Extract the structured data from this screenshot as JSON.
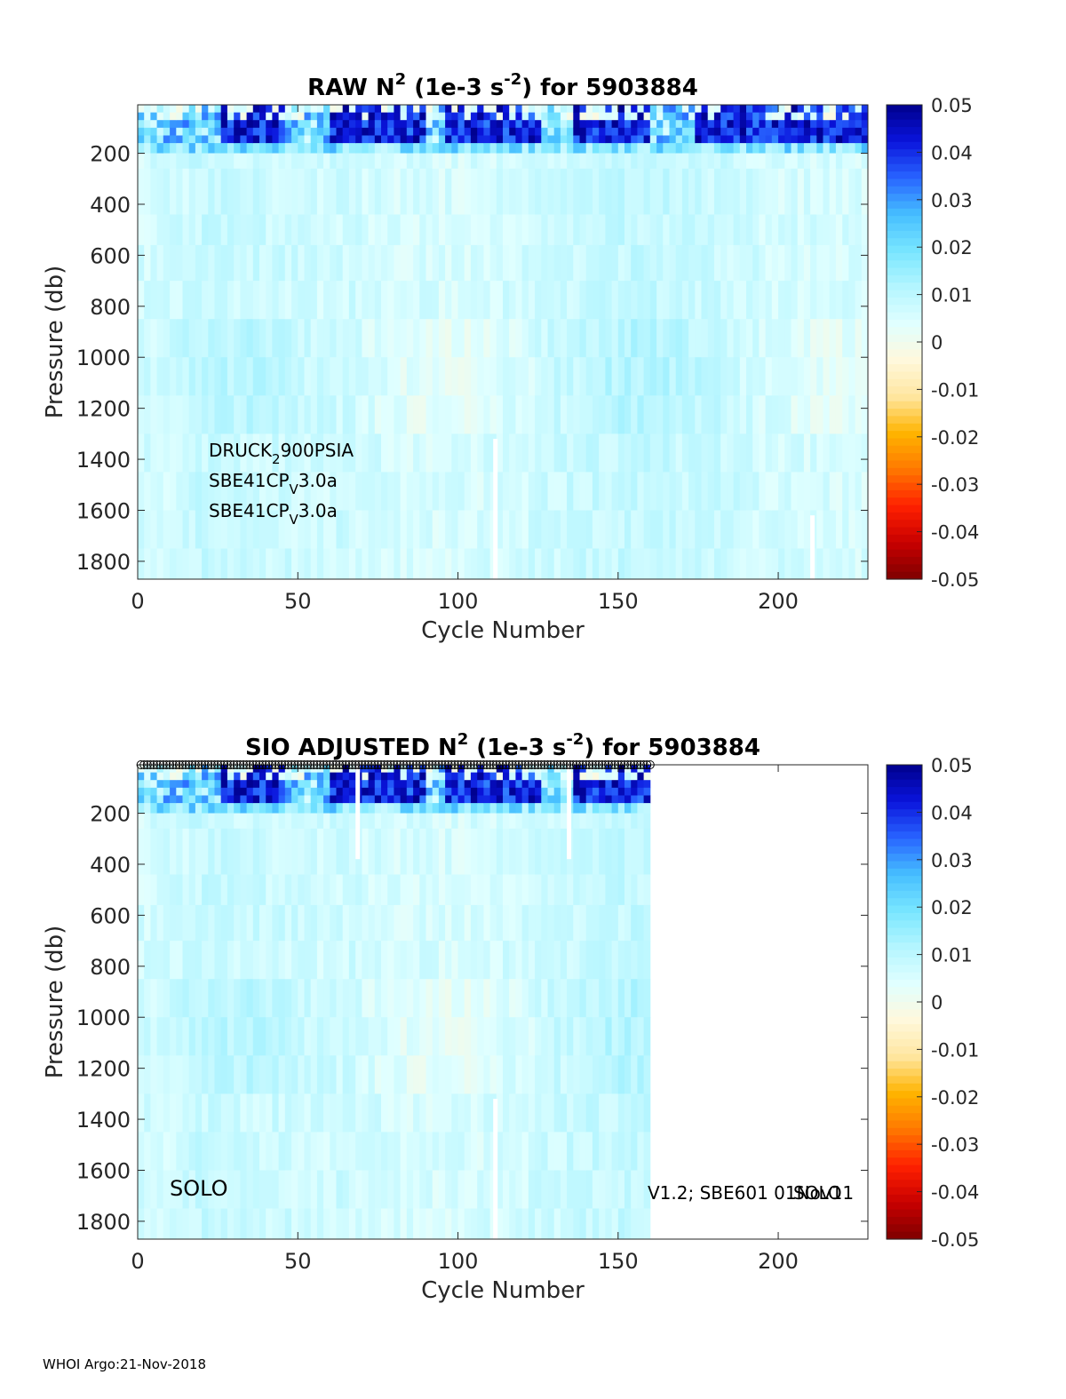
{
  "footer": "WHOI Argo:21-Nov-2018",
  "colors": {
    "colormap": [
      "#7f0000",
      "#c80000",
      "#ff2000",
      "#ff7800",
      "#ffb400",
      "#ffe6a0",
      "#fff8dc",
      "#e0ffff",
      "#b4f5ff",
      "#78e6ff",
      "#46beff",
      "#2864ff",
      "#0a14dc",
      "#00008c"
    ],
    "missing": "#ffffff",
    "axis": "#262626"
  },
  "chart_data": [
    {
      "type": "heatmap",
      "title_prefix": "RAW N",
      "title_sup1": "2",
      "title_mid": " (1e-3 s",
      "title_sup2": "-2",
      "title_suffix": ") for 5903884",
      "xlabel": "Cycle Number",
      "ylabel": "Pressure (db)",
      "xlim": [
        0,
        228
      ],
      "ylim": [
        1870,
        10
      ],
      "xticks": [
        "0",
        "50",
        "100",
        "150",
        "200"
      ],
      "yticks": [
        "200",
        "400",
        "600",
        "800",
        "1000",
        "1200",
        "1400",
        "1600",
        "1800"
      ],
      "clim": [
        -0.05,
        0.05
      ],
      "colorbar_ticks": [
        "0.05",
        "0.04",
        "0.03",
        "0.02",
        "0.01",
        "0",
        "-0.01",
        "-0.02",
        "-0.03",
        "-0.04",
        "-0.05"
      ],
      "data_extent_cycles": [
        0,
        228
      ],
      "gaps": [
        {
          "cycle": 111,
          "from_pressure": 1320,
          "to_pressure": 1870
        },
        {
          "cycle": 210,
          "from_pressure": 1620,
          "to_pressure": 1870
        }
      ],
      "values_summary": {
        "surface_layer_0_150db": "0.02 to 0.05",
        "deep_layer_200_1870db": "0.002 to 0.012"
      },
      "annotations": [
        {
          "base": "DRUCK",
          "sub": "2",
          "rest": "900PSIA"
        },
        {
          "base": "SBE41CP",
          "sub": "V",
          "rest": "3.0a"
        },
        {
          "base": "SBE41CP",
          "sub": "V",
          "rest": "3.0a"
        }
      ]
    },
    {
      "type": "heatmap",
      "title_prefix": "SIO  ADJUSTED N",
      "title_sup1": "2",
      "title_mid": " (1e-3 s",
      "title_sup2": "-2",
      "title_suffix": ") for 5903884",
      "xlabel": "Cycle Number",
      "ylabel": "Pressure (db)",
      "xlim": [
        0,
        228
      ],
      "ylim": [
        1870,
        10
      ],
      "xticks": [
        "0",
        "50",
        "100",
        "150",
        "200"
      ],
      "yticks": [
        "200",
        "400",
        "600",
        "800",
        "1000",
        "1200",
        "1400",
        "1600",
        "1800"
      ],
      "clim": [
        -0.05,
        0.05
      ],
      "colorbar_ticks": [
        "0.05",
        "0.04",
        "0.03",
        "0.02",
        "0.01",
        "0",
        "-0.01",
        "-0.02",
        "-0.03",
        "-0.04",
        "-0.05"
      ],
      "data_extent_cycles": [
        0,
        160
      ],
      "qc_marker_cycles": [
        1,
        160
      ],
      "gaps": [
        {
          "cycle": 68,
          "from_pressure": 10,
          "to_pressure": 380
        },
        {
          "cycle": 134,
          "from_pressure": 10,
          "to_pressure": 380
        },
        {
          "cycle": 111,
          "from_pressure": 1320,
          "to_pressure": 1870
        }
      ],
      "values_summary": {
        "surface_layer_0_150db": "0.02 to 0.05",
        "deep_layer_200_1870db": "0.002 to 0.012"
      },
      "annotations": [
        {
          "text": "SOLO"
        },
        {
          "text": "V1.2; SBE601 01Nov11"
        },
        {
          "text": "SOLO"
        }
      ]
    }
  ]
}
